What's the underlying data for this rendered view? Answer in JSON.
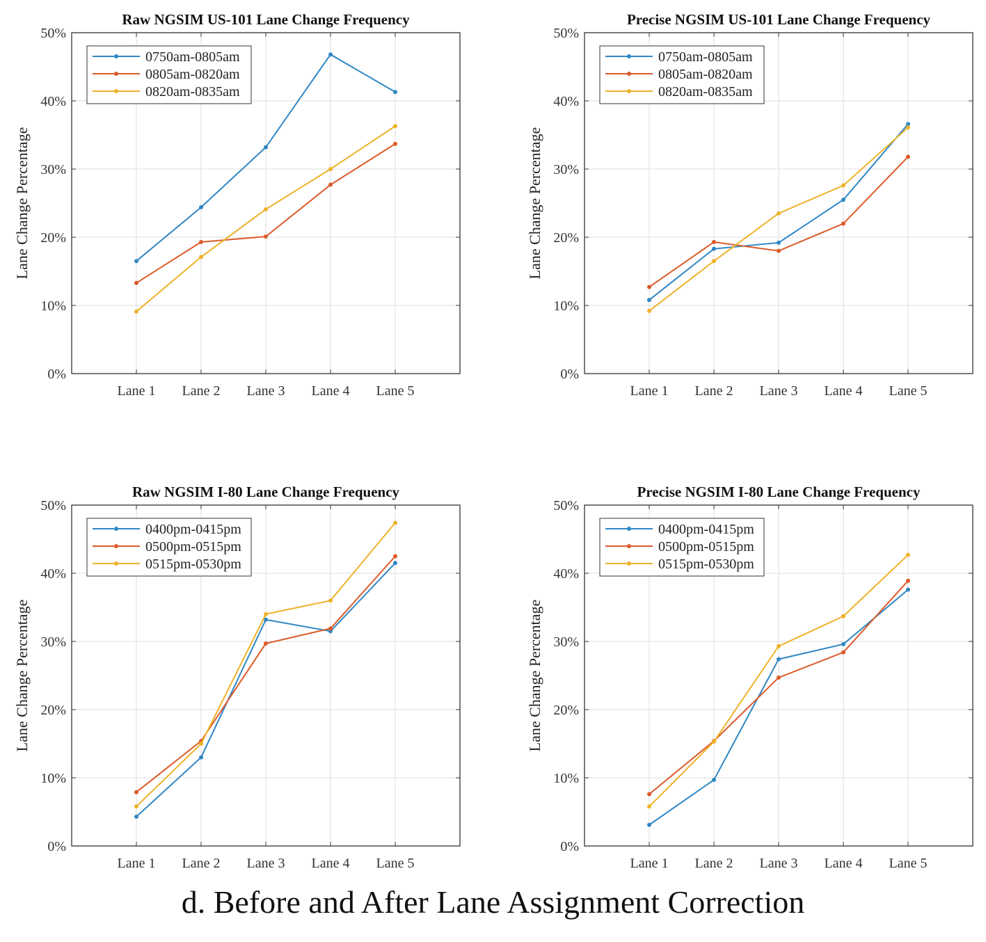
{
  "caption": "d.  Before and After Lane Assignment Correction",
  "colors": {
    "series1": "#2f87c4",
    "series2": "#dc5a2a",
    "series3": "#eeb22a",
    "grid": "#dddddd",
    "axis": "#333333"
  },
  "chart_data": [
    {
      "type": "line",
      "title": "Raw NGSIM US-101 Lane Change Frequency",
      "xlabel": "",
      "ylabel": "Lane Change Percentage",
      "categories": [
        "Lane 1",
        "Lane 2",
        "Lane 3",
        "Lane 4",
        "Lane 5"
      ],
      "yticks": [
        "0%",
        "10%",
        "20%",
        "30%",
        "40%",
        "50%"
      ],
      "ylim": [
        0,
        50
      ],
      "grid": true,
      "legend": "top-left",
      "series": [
        {
          "name": "0750am-0805am",
          "values": [
            16.5,
            24.4,
            33.2,
            46.8,
            41.3
          ]
        },
        {
          "name": "0805am-0820am",
          "values": [
            13.3,
            19.3,
            20.1,
            27.7,
            33.7
          ]
        },
        {
          "name": "0820am-0835am",
          "values": [
            9.1,
            17.1,
            24.1,
            30.0,
            36.3
          ]
        }
      ]
    },
    {
      "type": "line",
      "title": "Precise NGSIM US-101 Lane Change Frequency",
      "xlabel": "",
      "ylabel": "Lane Change Percentage",
      "categories": [
        "Lane 1",
        "Lane 2",
        "Lane 3",
        "Lane 4",
        "Lane 5"
      ],
      "yticks": [
        "0%",
        "10%",
        "20%",
        "30%",
        "40%",
        "50%"
      ],
      "ylim": [
        0,
        50
      ],
      "grid": true,
      "legend": "top-left",
      "series": [
        {
          "name": "0750am-0805am",
          "values": [
            10.8,
            18.3,
            19.2,
            25.5,
            36.6
          ]
        },
        {
          "name": "0805am-0820am",
          "values": [
            12.7,
            19.3,
            18.0,
            22.0,
            31.8
          ]
        },
        {
          "name": "0820am-0835am",
          "values": [
            9.2,
            16.5,
            23.5,
            27.6,
            36.1
          ]
        }
      ]
    },
    {
      "type": "line",
      "title": "Raw NGSIM I-80 Lane Change Frequency",
      "xlabel": "",
      "ylabel": "Lane Change Percentage",
      "categories": [
        "Lane 1",
        "Lane 2",
        "Lane 3",
        "Lane 4",
        "Lane 5"
      ],
      "yticks": [
        "0%",
        "10%",
        "20%",
        "30%",
        "40%",
        "50%"
      ],
      "ylim": [
        0,
        50
      ],
      "grid": true,
      "legend": "top-left",
      "series": [
        {
          "name": "0400pm-0415pm",
          "values": [
            4.3,
            13.0,
            33.2,
            31.5,
            41.5
          ]
        },
        {
          "name": "0500pm-0515pm",
          "values": [
            7.9,
            15.4,
            29.7,
            31.9,
            42.5
          ]
        },
        {
          "name": "0515pm-0530pm",
          "values": [
            5.8,
            15.0,
            34.0,
            36.0,
            47.4
          ]
        }
      ]
    },
    {
      "type": "line",
      "title": "Precise NGSIM I-80 Lane Change Frequency",
      "xlabel": "",
      "ylabel": "Lane Change Percentage",
      "categories": [
        "Lane 1",
        "Lane 2",
        "Lane 3",
        "Lane 4",
        "Lane 5"
      ],
      "yticks": [
        "0%",
        "10%",
        "20%",
        "30%",
        "40%",
        "50%"
      ],
      "ylim": [
        0,
        50
      ],
      "grid": true,
      "legend": "top-left",
      "series": [
        {
          "name": "0400pm-0415pm",
          "values": [
            3.1,
            9.7,
            27.4,
            29.6,
            37.6
          ]
        },
        {
          "name": "0500pm-0515pm",
          "values": [
            7.6,
            15.4,
            24.7,
            28.4,
            38.9
          ]
        },
        {
          "name": "0515pm-0530pm",
          "values": [
            5.8,
            15.3,
            29.3,
            33.7,
            42.7
          ]
        }
      ]
    }
  ]
}
